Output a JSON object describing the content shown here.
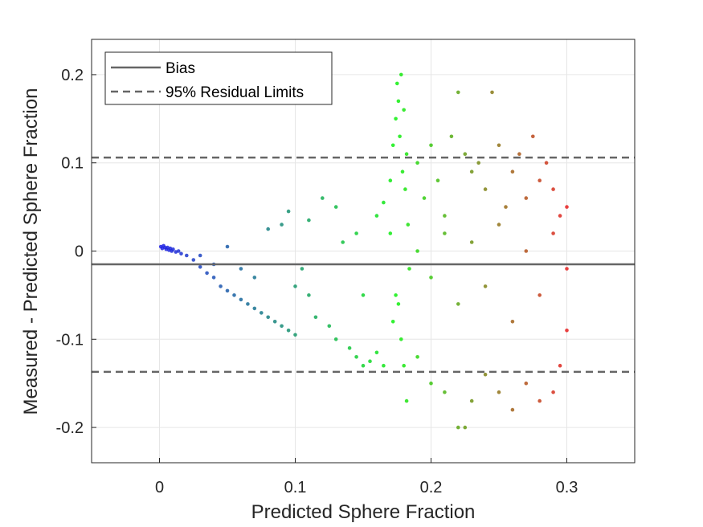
{
  "chart_data": {
    "type": "scatter",
    "title": "",
    "xlabel": "Predicted Sphere Fraction",
    "ylabel": "Measured - Predicted Sphere Fraction",
    "xlim": [
      -0.05,
      0.35
    ],
    "ylim": [
      -0.24,
      0.24
    ],
    "xticks": [
      0,
      0.1,
      0.2,
      0.3
    ],
    "xtick_labels": [
      "0",
      "0.1",
      "0.2",
      "0.3"
    ],
    "yticks": [
      -0.2,
      -0.1,
      0,
      0.1,
      0.2
    ],
    "ytick_labels": [
      "-0.2",
      "-0.1",
      "0",
      "0.1",
      "0.2"
    ],
    "grid": true,
    "legend_position": "top-left",
    "lines": [
      {
        "name": "Bias",
        "y": -0.015,
        "style": "solid",
        "color": "#666666"
      },
      {
        "name": "95% Residual Limits",
        "y": 0.106,
        "style": "dashed",
        "color": "#666666"
      },
      {
        "name": "95% Residual Limits",
        "y": -0.137,
        "style": "dashed",
        "color": "#666666"
      }
    ],
    "legend": [
      {
        "label": "Bias",
        "style": "solid"
      },
      {
        "label": "95% Residual Limits",
        "style": "dashed"
      }
    ],
    "point_colors": {
      "low": "#1f1fe6",
      "mid": "#0ff00f",
      "high": "#e61f1f"
    },
    "points": [
      [
        0.001,
        0.005
      ],
      [
        0.002,
        0.003
      ],
      [
        0.003,
        0.006
      ],
      [
        0.004,
        0.004
      ],
      [
        0.005,
        0.002
      ],
      [
        0.006,
        0.004
      ],
      [
        0.007,
        0.001
      ],
      [
        0.008,
        0.003
      ],
      [
        0.009,
        0.0
      ],
      [
        0.01,
        0.002
      ],
      [
        0.012,
        -0.001
      ],
      [
        0.014,
        0.0
      ],
      [
        0.016,
        -0.003
      ],
      [
        0.02,
        -0.005
      ],
      [
        0.025,
        -0.01
      ],
      [
        0.03,
        -0.018
      ],
      [
        0.035,
        -0.025
      ],
      [
        0.04,
        -0.03
      ],
      [
        0.045,
        -0.04
      ],
      [
        0.05,
        -0.045
      ],
      [
        0.055,
        -0.05
      ],
      [
        0.06,
        -0.055
      ],
      [
        0.065,
        -0.06
      ],
      [
        0.07,
        -0.065
      ],
      [
        0.075,
        -0.07
      ],
      [
        0.08,
        -0.075
      ],
      [
        0.085,
        -0.08
      ],
      [
        0.09,
        -0.085
      ],
      [
        0.095,
        -0.09
      ],
      [
        0.1,
        -0.095
      ],
      [
        0.03,
        -0.005
      ],
      [
        0.04,
        -0.015
      ],
      [
        0.05,
        0.005
      ],
      [
        0.06,
        -0.02
      ],
      [
        0.07,
        -0.03
      ],
      [
        0.08,
        0.025
      ],
      [
        0.09,
        0.03
      ],
      [
        0.1,
        -0.04
      ],
      [
        0.11,
        -0.05
      ],
      [
        0.12,
        0.06
      ],
      [
        0.13,
        0.05
      ],
      [
        0.11,
        0.035
      ],
      [
        0.095,
        0.045
      ],
      [
        0.105,
        -0.02
      ],
      [
        0.115,
        -0.075
      ],
      [
        0.125,
        -0.085
      ],
      [
        0.13,
        -0.1
      ],
      [
        0.14,
        -0.11
      ],
      [
        0.145,
        -0.12
      ],
      [
        0.15,
        -0.13
      ],
      [
        0.155,
        -0.125
      ],
      [
        0.16,
        -0.115
      ],
      [
        0.165,
        -0.13
      ],
      [
        0.135,
        0.01
      ],
      [
        0.145,
        0.02
      ],
      [
        0.15,
        -0.05
      ],
      [
        0.16,
        0.04
      ],
      [
        0.165,
        0.055
      ],
      [
        0.17,
        0.08
      ],
      [
        0.172,
        0.12
      ],
      [
        0.174,
        0.15
      ],
      [
        0.175,
        0.19
      ],
      [
        0.176,
        0.17
      ],
      [
        0.177,
        0.13
      ],
      [
        0.178,
        0.2
      ],
      [
        0.179,
        0.09
      ],
      [
        0.18,
        0.16
      ],
      [
        0.181,
        0.07
      ],
      [
        0.182,
        0.11
      ],
      [
        0.183,
        0.03
      ],
      [
        0.184,
        -0.02
      ],
      [
        0.176,
        -0.06
      ],
      [
        0.178,
        -0.1
      ],
      [
        0.18,
        -0.13
      ],
      [
        0.182,
        -0.17
      ],
      [
        0.174,
        -0.05
      ],
      [
        0.172,
        -0.08
      ],
      [
        0.17,
        0.02
      ],
      [
        0.19,
        0.1
      ],
      [
        0.195,
        0.06
      ],
      [
        0.2,
        0.12
      ],
      [
        0.205,
        0.08
      ],
      [
        0.21,
        0.04
      ],
      [
        0.215,
        0.13
      ],
      [
        0.22,
        0.18
      ],
      [
        0.225,
        0.11
      ],
      [
        0.23,
        0.09
      ],
      [
        0.235,
        0.1
      ],
      [
        0.24,
        0.07
      ],
      [
        0.245,
        0.18
      ],
      [
        0.25,
        0.12
      ],
      [
        0.255,
        0.05
      ],
      [
        0.26,
        0.09
      ],
      [
        0.265,
        0.11
      ],
      [
        0.27,
        0.06
      ],
      [
        0.275,
        0.13
      ],
      [
        0.28,
        0.08
      ],
      [
        0.285,
        0.1
      ],
      [
        0.29,
        0.07
      ],
      [
        0.295,
        0.04
      ],
      [
        0.19,
        -0.12
      ],
      [
        0.2,
        -0.15
      ],
      [
        0.21,
        -0.16
      ],
      [
        0.22,
        -0.2
      ],
      [
        0.225,
        -0.2
      ],
      [
        0.23,
        -0.17
      ],
      [
        0.24,
        -0.14
      ],
      [
        0.25,
        -0.16
      ],
      [
        0.26,
        -0.18
      ],
      [
        0.27,
        -0.15
      ],
      [
        0.28,
        -0.17
      ],
      [
        0.29,
        -0.16
      ],
      [
        0.295,
        -0.13
      ],
      [
        0.19,
        0.0
      ],
      [
        0.2,
        -0.03
      ],
      [
        0.21,
        0.02
      ],
      [
        0.22,
        -0.06
      ],
      [
        0.23,
        0.01
      ],
      [
        0.24,
        -0.04
      ],
      [
        0.25,
        0.03
      ],
      [
        0.26,
        -0.08
      ],
      [
        0.27,
        0.0
      ],
      [
        0.28,
        -0.05
      ],
      [
        0.29,
        0.02
      ],
      [
        0.3,
        -0.09
      ],
      [
        0.3,
        0.05
      ],
      [
        0.3,
        -0.02
      ]
    ]
  }
}
